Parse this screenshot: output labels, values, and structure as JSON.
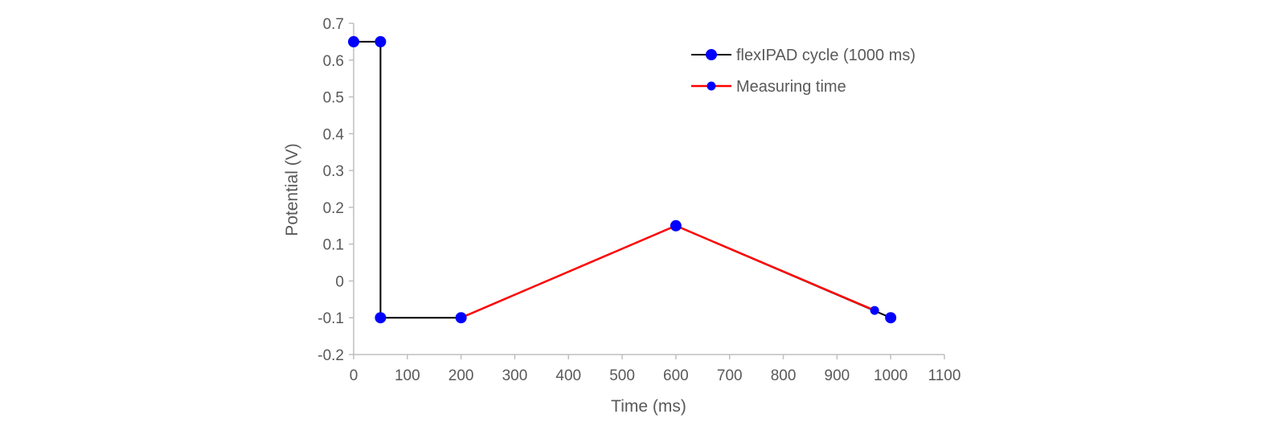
{
  "chart_data": {
    "type": "line",
    "title": "",
    "xlabel": "Time (ms)",
    "ylabel": "Potential (V)",
    "xlim": [
      0,
      1100
    ],
    "ylim": [
      -0.2,
      0.7
    ],
    "x_ticks": [
      0,
      100,
      200,
      300,
      400,
      500,
      600,
      700,
      800,
      900,
      1000,
      1100
    ],
    "x_tick_labels": [
      "0",
      "100",
      "200",
      "300",
      "400",
      "500",
      "600",
      "700",
      "800",
      "900",
      "1000",
      "1100"
    ],
    "y_ticks": [
      -0.2,
      -0.1,
      0,
      0.1,
      0.2,
      0.3,
      0.4,
      0.5,
      0.6,
      0.7
    ],
    "y_tick_labels": [
      "-0.2",
      "-0.1",
      "0",
      "0.1",
      "0.2",
      "0.3",
      "0.4",
      "0.5",
      "0.6",
      "0.7"
    ],
    "grid": false,
    "legend_position": "top-right",
    "series": [
      {
        "name": "flexIPAD cycle (1000 ms)",
        "line_color": "#000000",
        "marker_color": "#0000ff",
        "marker_size": "large",
        "x": [
          0,
          50,
          50,
          200,
          600,
          1000
        ],
        "y": [
          0.65,
          0.65,
          -0.1,
          -0.1,
          0.15,
          -0.1
        ]
      },
      {
        "name": "Measuring time",
        "line_color": "#ff0000",
        "marker_color": "#0000ff",
        "marker_size": "small",
        "x": [
          200,
          600,
          970
        ],
        "y": [
          -0.1,
          0.15,
          -0.08
        ]
      }
    ]
  }
}
